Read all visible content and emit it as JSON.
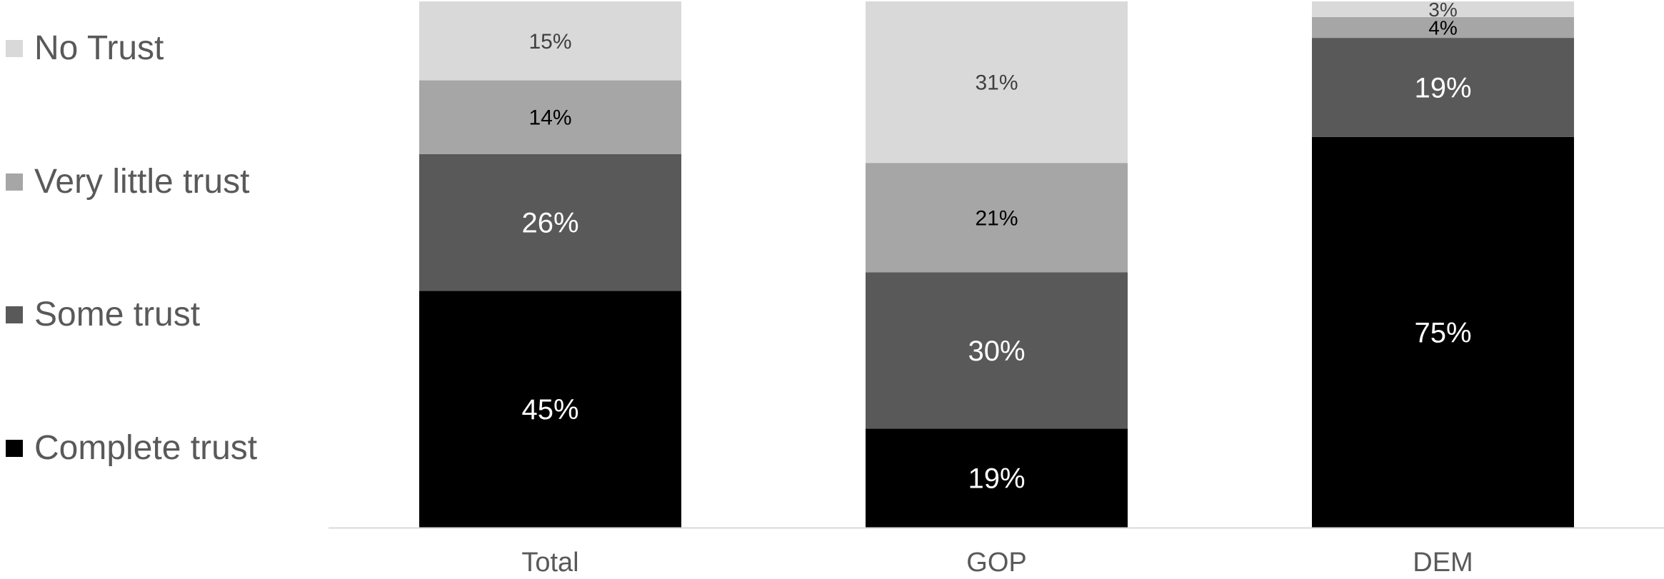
{
  "chart_data": {
    "type": "bar",
    "stacked": true,
    "categories": [
      "Total",
      "GOP",
      "DEM"
    ],
    "series": [
      {
        "name": "Complete trust",
        "color": "#000000",
        "label_color": "#ffffff",
        "values": [
          45,
          19,
          75
        ]
      },
      {
        "name": "Some trust",
        "color": "#595959",
        "label_color": "#ffffff",
        "values": [
          26,
          30,
          19
        ]
      },
      {
        "name": "Very little trust",
        "color": "#a6a6a6",
        "label_color": "#000000",
        "values": [
          14,
          21,
          4
        ]
      },
      {
        "name": "No Trust",
        "color": "#d9d9d9",
        "label_color": "#404040",
        "values": [
          15,
          31,
          3
        ]
      }
    ],
    "data_labels": [
      [
        "45%",
        "19%",
        "75%"
      ],
      [
        "26%",
        "30%",
        "19%"
      ],
      [
        "14%",
        "21%",
        "4%"
      ],
      [
        "15%",
        "31%",
        "3%"
      ]
    ],
    "legend_position": "left",
    "legend_order": [
      "No Trust",
      "Very little trust",
      "Some trust",
      "Complete trust"
    ],
    "grid": false,
    "title": "",
    "xlabel": "",
    "ylabel": ""
  }
}
